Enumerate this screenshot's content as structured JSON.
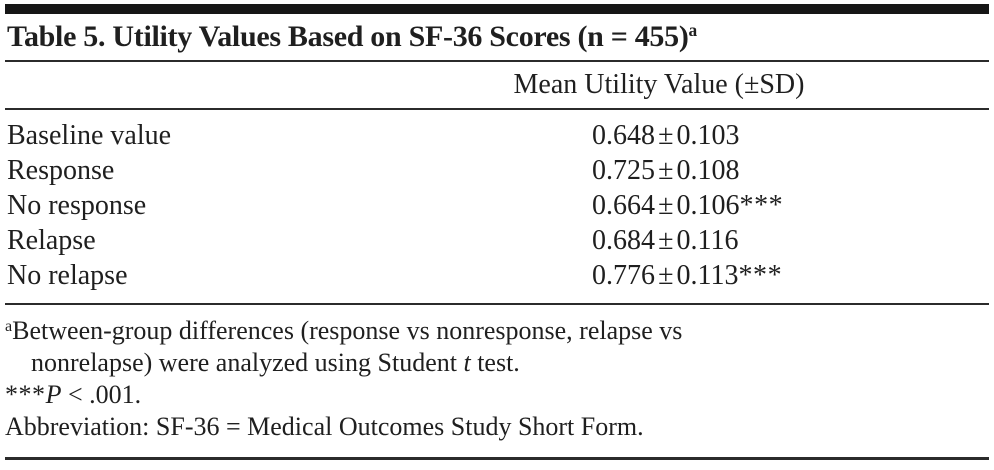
{
  "table": {
    "title": {
      "text": "Table 5. Utility Values Based on SF-36 Scores (n = 455)",
      "footnote_marker": "a"
    },
    "column_header": "Mean Utility Value (±SD)",
    "rows": [
      {
        "label": "Baseline value",
        "value": "0.648 ± 0.103",
        "stars": ""
      },
      {
        "label": "Response",
        "value": "0.725 ± 0.108",
        "stars": ""
      },
      {
        "label": "No response",
        "value": "0.664 ± 0.106",
        "stars": "***"
      },
      {
        "label": "Relapse",
        "value": "0.684 ± 0.116",
        "stars": ""
      },
      {
        "label": "No relapse",
        "value": "0.776 ± 0.113",
        "stars": "***"
      }
    ],
    "footnotes": {
      "a": {
        "marker": "a",
        "line1": "Between-group differences (response vs nonresponse, relapse vs",
        "line2_pre": "nonrelapse) were analyzed using Student ",
        "line2_italic": "t",
        "line2_post": " test."
      },
      "significance": {
        "stars": "***",
        "italic": "P",
        "rest": " < .001."
      },
      "abbreviation": "Abbreviation: SF-36 = Medical Outcomes Study Short Form."
    },
    "colors": {
      "text": "#1f1f1f",
      "rule": "#2b2b2b",
      "top_bar": "#161616",
      "background": "#ffffff"
    }
  }
}
